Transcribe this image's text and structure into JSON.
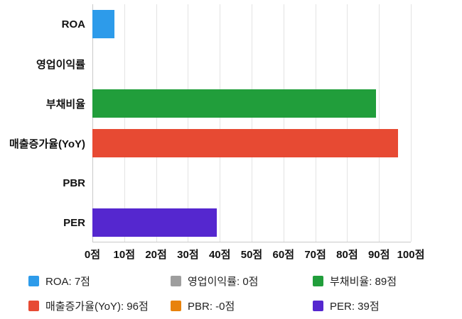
{
  "chart_data": {
    "type": "bar",
    "orientation": "horizontal",
    "title": "",
    "xlabel": "",
    "ylabel": "",
    "categories": [
      "ROA",
      "영업이익률",
      "부채비율",
      "매출증가율(YoY)",
      "PBR",
      "PER"
    ],
    "values": [
      7,
      0,
      89,
      96,
      0,
      39
    ],
    "bar_colors": [
      "#2d9bea",
      "#9e9e9e",
      "#219e3b",
      "#e74a33",
      "#e8820c",
      "#5527cf"
    ],
    "xlim": [
      0,
      100
    ],
    "x_ticks": [
      "0점",
      "10점",
      "20점",
      "30점",
      "40점",
      "50점",
      "60점",
      "70점",
      "80점",
      "90점",
      "100점"
    ],
    "grid": true,
    "legend_position": "bottom",
    "legend": [
      {
        "label": "ROA: 7점",
        "color": "#2d9bea"
      },
      {
        "label": "영업이익률: 0점",
        "color": "#9e9e9e"
      },
      {
        "label": "부채비율: 89점",
        "color": "#219e3b"
      },
      {
        "label": "매출증가율(YoY): 96점",
        "color": "#e74a33"
      },
      {
        "label": "PBR: -0점",
        "color": "#e8820c"
      },
      {
        "label": "PER: 39점",
        "color": "#5527cf"
      }
    ]
  }
}
